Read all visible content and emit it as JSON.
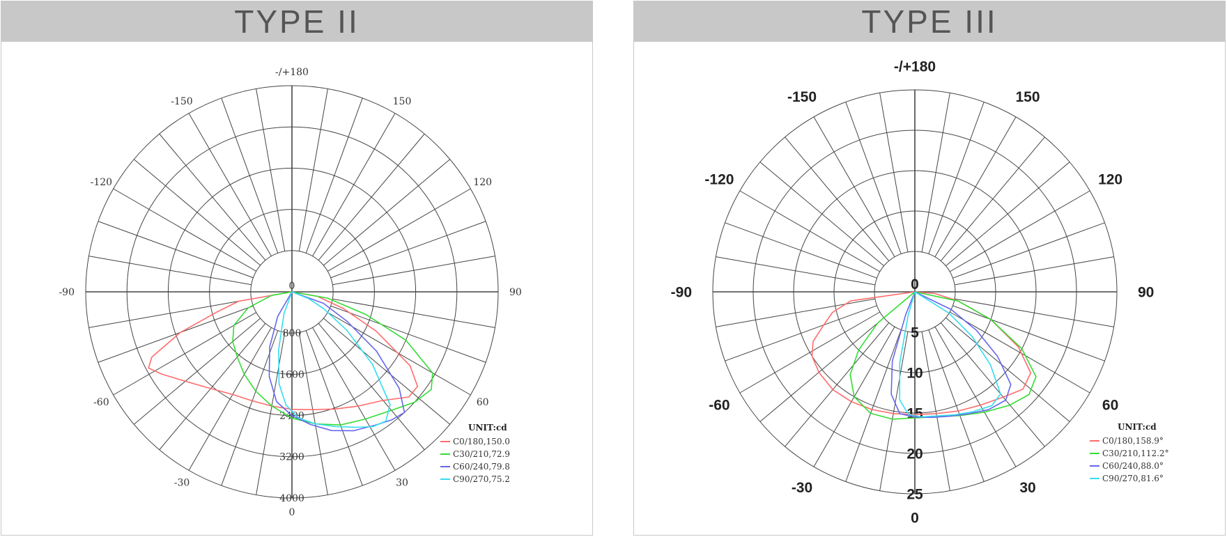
{
  "chart_data": [
    {
      "type": "polar",
      "title": "TYPE II",
      "angle_labels": [
        {
          "deg": 180,
          "text": "-/+180"
        },
        {
          "deg": -150,
          "text": "-150"
        },
        {
          "deg": 150,
          "text": "150"
        },
        {
          "deg": -120,
          "text": "-120"
        },
        {
          "deg": 120,
          "text": "120"
        },
        {
          "deg": -90,
          "text": "-90"
        },
        {
          "deg": 90,
          "text": "90"
        },
        {
          "deg": -60,
          "text": "-60"
        },
        {
          "deg": 60,
          "text": "60"
        },
        {
          "deg": -30,
          "text": "-30"
        },
        {
          "deg": 30,
          "text": "30"
        },
        {
          "deg": 0,
          "text": "0"
        }
      ],
      "radial_ticks": [
        0,
        800,
        1600,
        2400,
        3200,
        4000
      ],
      "rmax": 4000,
      "legend_title": "UNIT:cd",
      "series": [
        {
          "label": "C0/180,150.0",
          "color": "#ff6b6b",
          "points": [
            [
              -80,
              1050
            ],
            [
              -75,
              1500
            ],
            [
              -70,
              2300
            ],
            [
              -65,
              3000
            ],
            [
              -62,
              3150
            ],
            [
              -58,
              3000
            ],
            [
              -50,
              2700
            ],
            [
              -40,
              2450
            ],
            [
              -30,
              2300
            ],
            [
              -20,
              2250
            ],
            [
              -10,
              2250
            ],
            [
              0,
              2280
            ],
            [
              10,
              2320
            ],
            [
              20,
              2420
            ],
            [
              30,
              2560
            ],
            [
              40,
              2750
            ],
            [
              48,
              3050
            ],
            [
              53,
              3050
            ],
            [
              58,
              2700
            ],
            [
              65,
              1800
            ],
            [
              72,
              1050
            ],
            [
              80,
              500
            ]
          ]
        },
        {
          "label": "C30/210,72.9",
          "color": "#33dd33",
          "points": [
            [
              -80,
              400
            ],
            [
              -70,
              900
            ],
            [
              -60,
              1300
            ],
            [
              -50,
              1500
            ],
            [
              -40,
              1650
            ],
            [
              -30,
              1850
            ],
            [
              -20,
              2050
            ],
            [
              -10,
              2250
            ],
            [
              0,
              2450
            ],
            [
              10,
              2600
            ],
            [
              20,
              2750
            ],
            [
              30,
              2850
            ],
            [
              40,
              3000
            ],
            [
              48,
              3200
            ],
            [
              55,
              3300
            ],
            [
              60,
              3150
            ],
            [
              67,
              2400
            ],
            [
              73,
              1500
            ],
            [
              80,
              700
            ]
          ]
        },
        {
          "label": "C60/240,79.8",
          "color": "#6666ee",
          "points": [
            [
              -30,
              550
            ],
            [
              -22,
              1150
            ],
            [
              -15,
              1700
            ],
            [
              -8,
              2150
            ],
            [
              0,
              2400
            ],
            [
              8,
              2600
            ],
            [
              16,
              2800
            ],
            [
              24,
              2950
            ],
            [
              32,
              3050
            ],
            [
              38,
              3150
            ],
            [
              43,
              3200
            ],
            [
              48,
              2800
            ],
            [
              55,
              2000
            ],
            [
              62,
              1200
            ],
            [
              70,
              650
            ]
          ]
        },
        {
          "label": "C90/270,75.2",
          "color": "#33ddee",
          "points": [
            [
              -20,
              450
            ],
            [
              -13,
              1150
            ],
            [
              -8,
              1800
            ],
            [
              -3,
              2200
            ],
            [
              3,
              2450
            ],
            [
              10,
              2600
            ],
            [
              18,
              2750
            ],
            [
              25,
              2900
            ],
            [
              31,
              3050
            ],
            [
              36,
              3100
            ],
            [
              41,
              2900
            ],
            [
              48,
              2100
            ],
            [
              55,
              1300
            ],
            [
              62,
              700
            ],
            [
              68,
              350
            ]
          ]
        }
      ]
    },
    {
      "type": "polar",
      "title": "TYPE III",
      "angle_labels": [
        {
          "deg": 180,
          "text": "-/+180"
        },
        {
          "deg": -150,
          "text": "-150"
        },
        {
          "deg": 150,
          "text": "150"
        },
        {
          "deg": -120,
          "text": "-120"
        },
        {
          "deg": 120,
          "text": "120"
        },
        {
          "deg": -90,
          "text": "-90"
        },
        {
          "deg": 90,
          "text": "90"
        },
        {
          "deg": -60,
          "text": "-60"
        },
        {
          "deg": 60,
          "text": "60"
        },
        {
          "deg": -30,
          "text": "-30"
        },
        {
          "deg": 30,
          "text": "30"
        },
        {
          "deg": 0,
          "text": "0"
        }
      ],
      "radial_ticks": [
        0,
        5,
        10,
        15,
        20,
        25
      ],
      "rmax": 25,
      "legend_title": "UNIT:cd",
      "series": [
        {
          "label": "C0/180,158.9°",
          "color": "#ff6b6b",
          "points": [
            [
              -82,
              8
            ],
            [
              -76,
              10.5
            ],
            [
              -70,
              12
            ],
            [
              -64,
              14
            ],
            [
              -58,
              15
            ],
            [
              -50,
              15.5
            ],
            [
              -40,
              15.8
            ],
            [
              -30,
              15.7
            ],
            [
              -20,
              15.5
            ],
            [
              -10,
              15.3
            ],
            [
              0,
              15.2
            ],
            [
              10,
              15.3
            ],
            [
              20,
              15.7
            ],
            [
              30,
              16.2
            ],
            [
              40,
              17
            ],
            [
              48,
              18
            ],
            [
              55,
              17.5
            ],
            [
              62,
              14.5
            ],
            [
              70,
              10
            ],
            [
              78,
              5.5
            ],
            [
              85,
              2.5
            ]
          ]
        },
        {
          "label": "C30/210,112.2°",
          "color": "#33dd33",
          "points": [
            [
              -50,
              6
            ],
            [
              -44,
              10
            ],
            [
              -38,
              13
            ],
            [
              -30,
              15
            ],
            [
              -20,
              16
            ],
            [
              -10,
              16
            ],
            [
              0,
              15.6
            ],
            [
              10,
              15.7
            ],
            [
              20,
              16.3
            ],
            [
              30,
              17.2
            ],
            [
              40,
              18.3
            ],
            [
              48,
              19
            ],
            [
              55,
              18.3
            ],
            [
              62,
              15
            ],
            [
              70,
              10
            ],
            [
              78,
              5.5
            ]
          ]
        },
        {
          "label": "C60/240,88.0°",
          "color": "#6666ee",
          "points": [
            [
              -22,
              3
            ],
            [
              -18,
              9
            ],
            [
              -13,
              13
            ],
            [
              -7,
              15.2
            ],
            [
              0,
              15.5
            ],
            [
              8,
              15.7
            ],
            [
              16,
              16
            ],
            [
              24,
              16.5
            ],
            [
              32,
              17.2
            ],
            [
              40,
              17.5
            ],
            [
              46,
              16.5
            ],
            [
              52,
              13
            ],
            [
              58,
              9
            ],
            [
              64,
              5
            ]
          ]
        },
        {
          "label": "C90/270,81.6°",
          "color": "#33ddee",
          "points": [
            [
              -16,
              3
            ],
            [
              -12,
              9
            ],
            [
              -8,
              13.5
            ],
            [
              -3,
              15.2
            ],
            [
              3,
              15.5
            ],
            [
              10,
              15.6
            ],
            [
              18,
              16
            ],
            [
              26,
              16.5
            ],
            [
              34,
              17
            ],
            [
              40,
              16.5
            ],
            [
              46,
              13
            ],
            [
              52,
              9
            ],
            [
              58,
              5
            ]
          ]
        }
      ]
    }
  ]
}
